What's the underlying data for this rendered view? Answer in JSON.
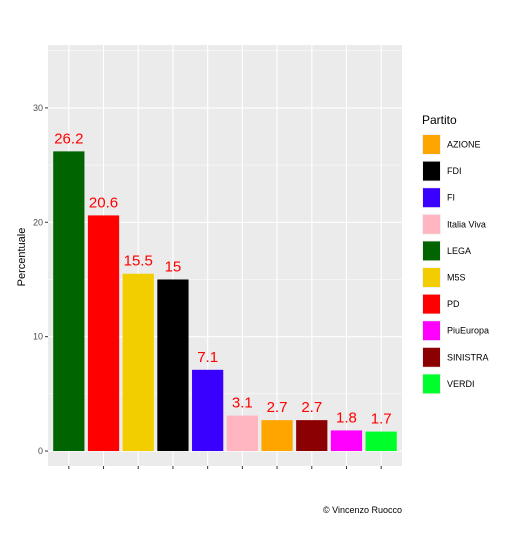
{
  "chart_data": {
    "type": "bar",
    "categories": [
      "LEGA",
      "PD",
      "M5S",
      "FDI",
      "FI",
      "Italia Viva",
      "AZIONE",
      "SINISTRA",
      "PiuEuropa",
      "VERDI"
    ],
    "values": [
      26.2,
      20.6,
      15.5,
      15,
      7.1,
      3.1,
      2.7,
      2.7,
      1.8,
      1.7
    ],
    "value_labels": [
      "26.2",
      "20.6",
      "15.5",
      "15",
      "7.1",
      "3.1",
      "2.7",
      "2.7",
      "1.8",
      "1.7"
    ],
    "colors": [
      "#006400",
      "#ff0000",
      "#f2cd00",
      "#000000",
      "#3a00ff",
      "#ffb6c1",
      "#ffa500",
      "#8b0000",
      "#ff00ff",
      "#00ff2a"
    ],
    "xlabel": "",
    "ylabel": "Percentuale",
    "ylim": [
      -1.31,
      35.5
    ],
    "yticks": [
      0,
      10,
      20,
      30
    ],
    "ytick_labels": [
      "0",
      "10",
      "20",
      "30"
    ],
    "grid": true,
    "legend": {
      "title": "Partito",
      "position": "right",
      "items": [
        {
          "label": "AZIONE",
          "color": "#ffa500"
        },
        {
          "label": "FDI",
          "color": "#000000"
        },
        {
          "label": "FI",
          "color": "#3a00ff"
        },
        {
          "label": "Italia Viva",
          "color": "#ffb6c1"
        },
        {
          "label": "LEGA",
          "color": "#006400"
        },
        {
          "label": "M5S",
          "color": "#f2cd00"
        },
        {
          "label": "PD",
          "color": "#ff0000"
        },
        {
          "label": "PiuEuropa",
          "color": "#ff00ff"
        },
        {
          "label": "SINISTRA",
          "color": "#8b0000"
        },
        {
          "label": "VERDI",
          "color": "#00ff2a"
        }
      ]
    },
    "caption": "© Vincenzo Ruocco",
    "panel_background": "#ebebeb",
    "label_color": "#ff0000"
  }
}
